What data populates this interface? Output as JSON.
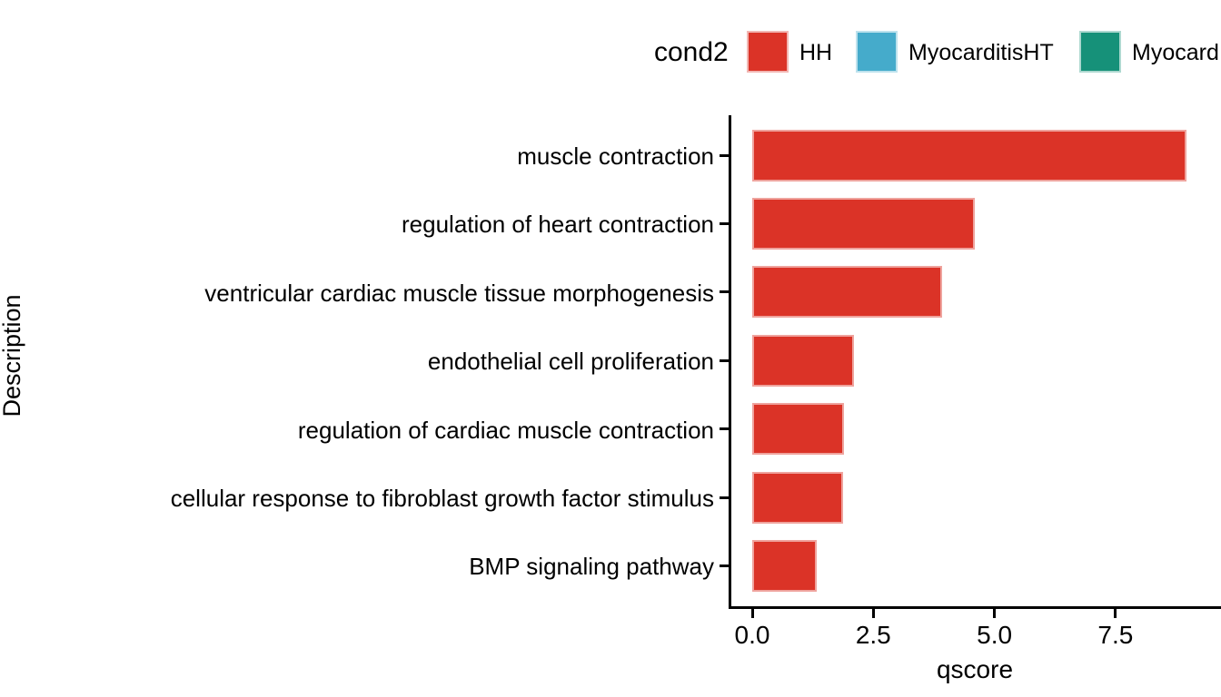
{
  "figure": {
    "background": "#FFFFFF",
    "text_color": "#000000",
    "axis_color": "#000000"
  },
  "chart_data": {
    "type": "bar",
    "orientation": "horizontal",
    "title": "",
    "xlabel": "qscore",
    "ylabel": "Description",
    "categories": [
      "muscle contraction",
      "regulation of heart contraction",
      "ventricular cardiac muscle tissue morphogenesis",
      "endothelial cell proliferation",
      "regulation of cardiac muscle contraction",
      "cellular response to fibroblast growth factor stimulus",
      "BMP signaling pathway"
    ],
    "series": [
      {
        "name": "HH",
        "color": "#DB3327",
        "values": [
          8.97,
          4.6,
          3.92,
          2.1,
          1.9,
          1.88,
          1.33
        ]
      }
    ],
    "xticks": [
      0.0,
      2.5,
      5.0,
      7.5
    ],
    "xtick_labels": [
      "0.0",
      "2.5",
      "5.0",
      "7.5"
    ],
    "xlim": [
      0,
      9.68
    ],
    "grid": false,
    "legend": {
      "title": "cond2",
      "position": "top",
      "entries": [
        {
          "label": "HH",
          "color": "#DB3327"
        },
        {
          "label": "MyocarditisHT",
          "color": "#45ABCB"
        },
        {
          "label": "Myocard",
          "color": "#169179"
        }
      ]
    }
  }
}
